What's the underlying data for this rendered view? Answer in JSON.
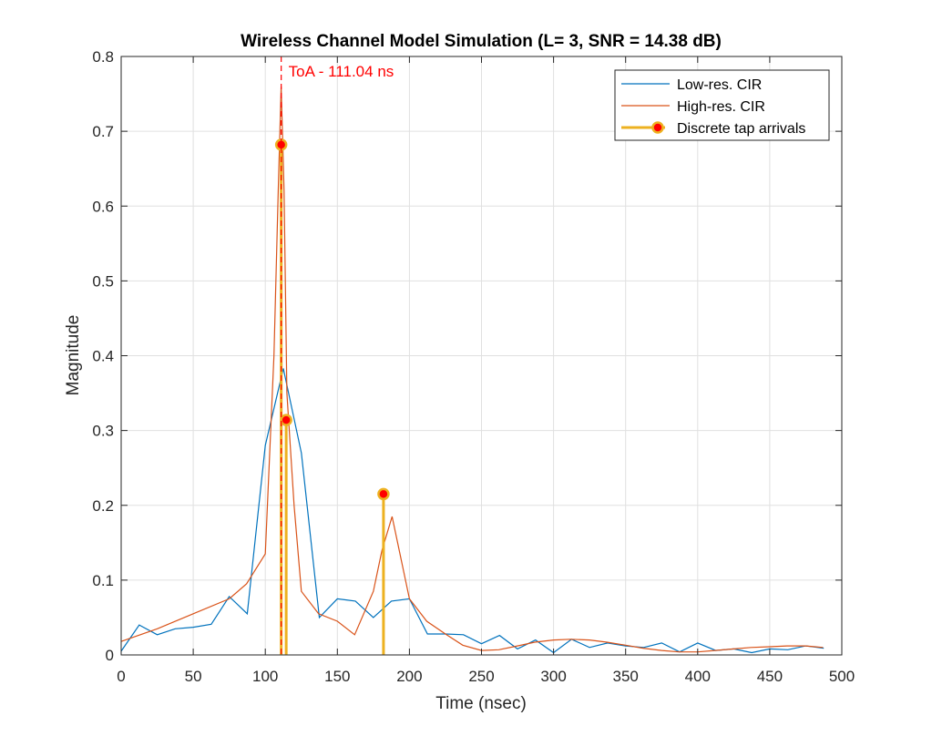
{
  "chart_data": {
    "type": "line",
    "title": "Wireless Channel Model Simulation (L= 3, SNR = 14.38 dB)",
    "xlabel": "Time (nsec)",
    "ylabel": "Magnitude",
    "xlim": [
      0,
      500
    ],
    "ylim": [
      0,
      0.8
    ],
    "xticks": [
      0,
      50,
      100,
      150,
      200,
      250,
      300,
      350,
      400,
      450,
      500
    ],
    "xtick_labels": [
      "0",
      "50",
      "100",
      "150",
      "200",
      "250",
      "300",
      "350",
      "400",
      "450",
      "500"
    ],
    "yticks": [
      0,
      0.1,
      0.2,
      0.3,
      0.4,
      0.5,
      0.6,
      0.7,
      0.8
    ],
    "ytick_labels": [
      "0",
      "0.1",
      "0.2",
      "0.3",
      "0.4",
      "0.5",
      "0.6",
      "0.7",
      "0.8"
    ],
    "grid": true,
    "legend_position": "top-right",
    "series": [
      {
        "name": "Low-res. CIR",
        "color": "#0072BD",
        "x": [
          0,
          12.5,
          25,
          37.5,
          50,
          62.5,
          75,
          87.5,
          100,
          112.5,
          125,
          137.5,
          150,
          162.5,
          175,
          187.5,
          200,
          212.5,
          225,
          237.5,
          250,
          262.5,
          275,
          287.5,
          300,
          312.5,
          325,
          337.5,
          350,
          362.5,
          375,
          387.5,
          400,
          412.5,
          425,
          437.5,
          450,
          462.5,
          475,
          487.5
        ],
        "y": [
          0.005,
          0.04,
          0.027,
          0.035,
          0.037,
          0.041,
          0.078,
          0.055,
          0.28,
          0.383,
          0.27,
          0.05,
          0.075,
          0.072,
          0.05,
          0.072,
          0.075,
          0.028,
          0.028,
          0.027,
          0.015,
          0.026,
          0.008,
          0.02,
          0.003,
          0.021,
          0.01,
          0.016,
          0.012,
          0.01,
          0.016,
          0.004,
          0.016,
          0.006,
          0.008,
          0.003,
          0.008,
          0.007,
          0.012,
          0.009
        ]
      },
      {
        "name": "High-res. CIR",
        "color": "#D95319",
        "x": [
          0,
          25,
          50,
          75,
          87,
          100,
          106,
          109,
          111,
          113,
          115,
          120,
          125,
          137,
          150,
          162,
          175,
          181,
          188,
          200,
          212,
          225,
          237,
          250,
          262,
          275,
          287,
          300,
          312,
          325,
          337,
          350,
          362,
          375,
          387,
          400,
          412,
          425,
          437,
          450,
          462,
          475,
          487
        ],
        "y": [
          0.018,
          0.035,
          0.055,
          0.075,
          0.095,
          0.135,
          0.4,
          0.62,
          0.76,
          0.62,
          0.35,
          0.2,
          0.085,
          0.055,
          0.045,
          0.027,
          0.085,
          0.14,
          0.185,
          0.075,
          0.045,
          0.028,
          0.013,
          0.006,
          0.007,
          0.012,
          0.017,
          0.02,
          0.021,
          0.02,
          0.017,
          0.013,
          0.009,
          0.006,
          0.004,
          0.004,
          0.006,
          0.008,
          0.01,
          0.011,
          0.012,
          0.012,
          0.01
        ]
      },
      {
        "name": "Discrete tap arrivals",
        "type": "stem",
        "color": "#EDB120",
        "marker_face_color": "#FF0000",
        "x": [
          111.04,
          114.5,
          182
        ],
        "y": [
          0.682,
          0.314,
          0.215
        ]
      }
    ],
    "annotations": [
      {
        "text": "ToA - 111.04 ns",
        "x": 111.04,
        "color": "#FF0000",
        "style": "dashed vertical line"
      }
    ]
  }
}
